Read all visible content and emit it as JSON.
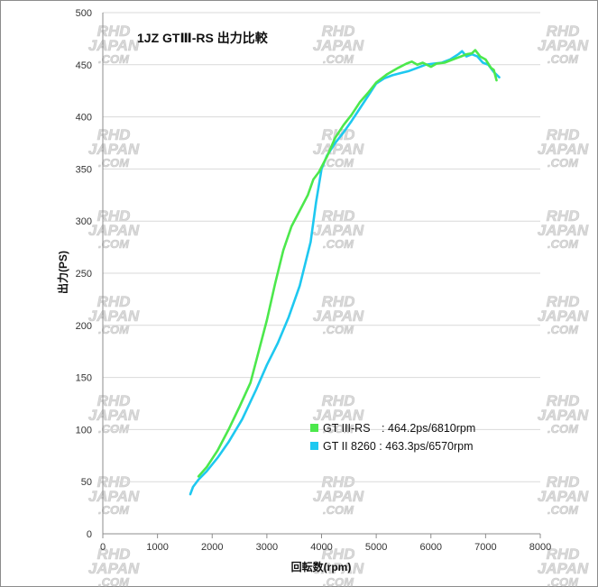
{
  "chart_data": {
    "type": "line",
    "title": "1JZ GTⅢ-RS 出力比較",
    "xlabel": "回転数(rpm)",
    "ylabel": "出力(PS)",
    "xlim": [
      0,
      8000
    ],
    "ylim": [
      0,
      500
    ],
    "x_ticks": [
      "0",
      "1000",
      "2000",
      "3000",
      "4000",
      "5000",
      "6000",
      "7000",
      "8000"
    ],
    "y_ticks": [
      "0",
      "50",
      "100",
      "150",
      "200",
      "250",
      "300",
      "350",
      "400",
      "450",
      "500"
    ],
    "grid": "horizontal",
    "legend_position": "inside-bottom-right",
    "watermark": [
      "RHD",
      "JAPAN",
      ".COM"
    ],
    "series": [
      {
        "name": "GT III-RS　: 464.2ps/6810rpm",
        "color": "#4CE84C",
        "points": [
          [
            1750,
            55
          ],
          [
            1900,
            64
          ],
          [
            2100,
            80
          ],
          [
            2300,
            100
          ],
          [
            2500,
            122
          ],
          [
            2700,
            145
          ],
          [
            2850,
            175
          ],
          [
            3000,
            205
          ],
          [
            3150,
            240
          ],
          [
            3300,
            272
          ],
          [
            3450,
            295
          ],
          [
            3600,
            310
          ],
          [
            3750,
            325
          ],
          [
            3850,
            340
          ],
          [
            3950,
            347
          ],
          [
            4100,
            362
          ],
          [
            4250,
            380
          ],
          [
            4400,
            392
          ],
          [
            4550,
            402
          ],
          [
            4700,
            414
          ],
          [
            4850,
            423
          ],
          [
            5000,
            433
          ],
          [
            5200,
            441
          ],
          [
            5400,
            447
          ],
          [
            5550,
            451
          ],
          [
            5650,
            453
          ],
          [
            5750,
            450
          ],
          [
            5850,
            452
          ],
          [
            6000,
            448
          ],
          [
            6100,
            451
          ],
          [
            6250,
            452
          ],
          [
            6400,
            455
          ],
          [
            6550,
            458
          ],
          [
            6650,
            460
          ],
          [
            6750,
            461
          ],
          [
            6810,
            464
          ],
          [
            6900,
            458
          ],
          [
            7000,
            455
          ],
          [
            7100,
            447
          ],
          [
            7150,
            445
          ],
          [
            7200,
            435
          ]
        ]
      },
      {
        "name": "GT II 8260  : 463.3ps/6570rpm",
        "color": "#1EC8F0",
        "points": [
          [
            1600,
            38
          ],
          [
            1650,
            45
          ],
          [
            1750,
            52
          ],
          [
            1900,
            60
          ],
          [
            2100,
            73
          ],
          [
            2300,
            88
          ],
          [
            2550,
            110
          ],
          [
            2800,
            138
          ],
          [
            3000,
            162
          ],
          [
            3200,
            183
          ],
          [
            3400,
            208
          ],
          [
            3600,
            238
          ],
          [
            3800,
            280
          ],
          [
            3900,
            318
          ],
          [
            4000,
            350
          ],
          [
            4100,
            363
          ],
          [
            4250,
            375
          ],
          [
            4400,
            385
          ],
          [
            4550,
            396
          ],
          [
            4700,
            408
          ],
          [
            4850,
            420
          ],
          [
            5000,
            432
          ],
          [
            5150,
            437
          ],
          [
            5300,
            440
          ],
          [
            5450,
            442
          ],
          [
            5600,
            444
          ],
          [
            5750,
            447
          ],
          [
            5900,
            450
          ],
          [
            6050,
            451
          ],
          [
            6200,
            452
          ],
          [
            6350,
            455
          ],
          [
            6500,
            460
          ],
          [
            6570,
            463
          ],
          [
            6650,
            458
          ],
          [
            6750,
            460
          ],
          [
            6850,
            458
          ],
          [
            6950,
            452
          ],
          [
            7050,
            450
          ],
          [
            7150,
            443
          ],
          [
            7250,
            438
          ]
        ]
      }
    ]
  }
}
